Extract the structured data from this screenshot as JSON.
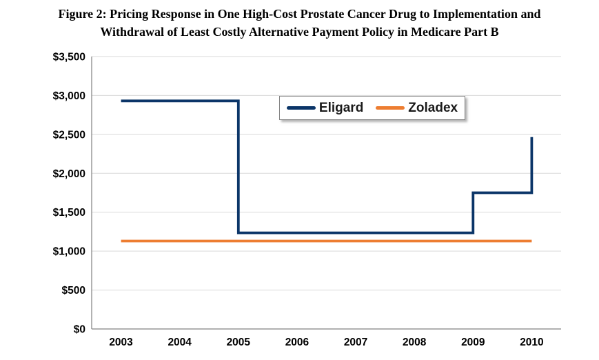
{
  "figure": {
    "title_line1": "Figure 2: Pricing Response in One High-Cost Prostate Cancer Drug to Implementation and",
    "title_line2": "Withdrawal of Least Costly Alternative Payment Policy in Medicare Part B"
  },
  "chart_data": {
    "type": "line",
    "title": "Figure 2: Pricing Response in One High-Cost Prostate Cancer Drug to Implementation and Withdrawal of Least Costly Alternative Payment Policy in Medicare Part B",
    "xlabel": "",
    "ylabel": "",
    "grid": true,
    "x_axis": {
      "type": "category",
      "min": 2003,
      "max": 2010,
      "tick_labels": [
        "2003",
        "2004",
        "2005",
        "2006",
        "2007",
        "2008",
        "2009",
        "2010"
      ]
    },
    "y_axis": {
      "min": 0,
      "max": 3500,
      "step": 500,
      "unit": "US dollars",
      "tick_labels": [
        "$0",
        "$500",
        "$1,000",
        "$1,500",
        "$2,000",
        "$2,500",
        "$3,000",
        "$3,500"
      ]
    },
    "legend": {
      "position": "top-center-inside",
      "border": true,
      "entries": [
        "Eligard",
        "Zoladex"
      ]
    },
    "series": [
      {
        "name": "Eligard",
        "color": "#0b3568",
        "step_points": [
          [
            2003,
            2930
          ],
          [
            2005,
            2930
          ],
          [
            2005,
            1235
          ],
          [
            2009,
            1235
          ],
          [
            2009,
            1750
          ],
          [
            2010,
            1750
          ],
          [
            2010,
            2465
          ]
        ]
      },
      {
        "name": "Zoladex",
        "color": "#ed7d31",
        "step_points": [
          [
            2003,
            1130
          ],
          [
            2010,
            1130
          ]
        ]
      }
    ],
    "annual_values_approx": {
      "years": [
        2003,
        2004,
        2005,
        2006,
        2007,
        2008,
        2009,
        2010
      ],
      "Eligard": [
        2930,
        2930,
        1235,
        1235,
        1235,
        1235,
        1750,
        2465
      ],
      "Zoladex": [
        1130,
        1130,
        1130,
        1130,
        1130,
        1130,
        1130,
        1130
      ]
    }
  },
  "colors": {
    "background": "#ffffff",
    "gridline": "#d9d9d9",
    "axis": "#808080",
    "text": "#000000",
    "legend_border": "#848484"
  }
}
